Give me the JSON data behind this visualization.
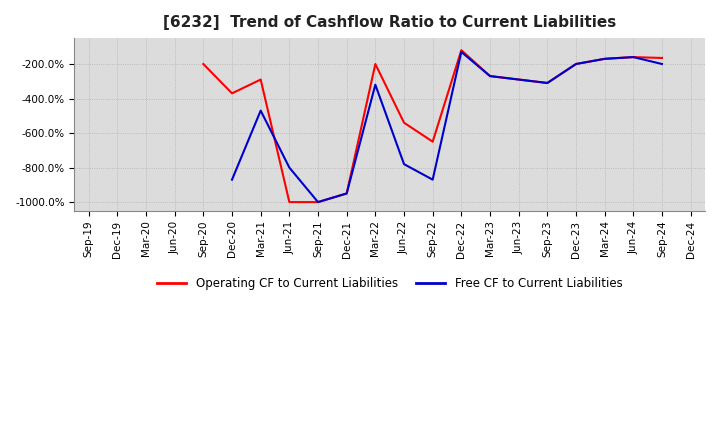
{
  "title": "[6232]  Trend of Cashflow Ratio to Current Liabilities",
  "ylim": [
    -1050,
    -50
  ],
  "ytick_values": [
    -200,
    -400,
    -600,
    -800,
    -1000
  ],
  "ytick_labels": [
    "-200.0%",
    "-400.0%",
    "-600.0%",
    "-800.0%",
    "-1000.0%"
  ],
  "x_labels": [
    "Sep-19",
    "Dec-19",
    "Mar-20",
    "Jun-20",
    "Sep-20",
    "Dec-20",
    "Mar-21",
    "Jun-21",
    "Sep-21",
    "Dec-21",
    "Mar-22",
    "Jun-22",
    "Sep-22",
    "Dec-22",
    "Mar-23",
    "Jun-23",
    "Sep-23",
    "Dec-23",
    "Mar-24",
    "Jun-24",
    "Sep-24",
    "Dec-24"
  ],
  "operating_cf": [
    null,
    null,
    null,
    null,
    -200,
    -370,
    -290,
    -1000,
    -1000,
    -950,
    -200,
    -540,
    -650,
    -120,
    -270,
    -290,
    -310,
    -200,
    -170,
    -160,
    -165,
    null
  ],
  "free_cf": [
    null,
    null,
    null,
    null,
    null,
    -870,
    -470,
    -800,
    -1000,
    -950,
    -320,
    -780,
    -870,
    -130,
    -270,
    -290,
    -310,
    -200,
    -170,
    -160,
    -200,
    null
  ],
  "operating_color": "#ff0000",
  "free_color": "#0000cc",
  "background_color": "#ffffff",
  "plot_bg": "#dcdcdc",
  "grid_color": "#b0b0b0",
  "legend_op": "Operating CF to Current Liabilities",
  "legend_free": "Free CF to Current Liabilities",
  "title_fontsize": 11,
  "tick_fontsize": 7.5,
  "legend_fontsize": 8.5
}
